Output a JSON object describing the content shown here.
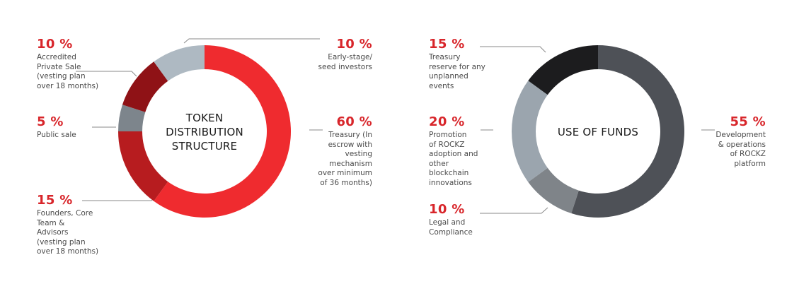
{
  "colors": {
    "label_accent": "#d8262b",
    "leader_line": "#8a8a8a"
  },
  "chart_data": [
    {
      "type": "pie",
      "title": "TOKEN\nDISTRIBUTION\nSTRUCTURE",
      "donut": true,
      "slices": [
        {
          "pct_label": "60 %",
          "value": 60,
          "desc": "Treasury (In\nescrow with\nvesting\nmechanism\nover minimum\nof 36 months)",
          "color": "#ef2b2f"
        },
        {
          "pct_label": "15 %",
          "value": 15,
          "desc": "Founders, Core\nTeam &\nAdvisors\n(vesting plan\nover 18 months)",
          "color": "#b71c1f"
        },
        {
          "pct_label": "5 %",
          "value": 5,
          "desc": "Public sale",
          "color": "#7d858c"
        },
        {
          "pct_label": "10 %",
          "value": 10,
          "desc": "Accredited\nPrivate Sale\n(vesting plan\nover 18 months)",
          "color": "#8f1216"
        },
        {
          "pct_label": "10 %",
          "value": 10,
          "desc": "Early-stage/\nseed investors",
          "color": "#aeb9c2"
        }
      ]
    },
    {
      "type": "pie",
      "title": "USE OF FUNDS",
      "donut": true,
      "slices": [
        {
          "pct_label": "55 %",
          "value": 55,
          "desc": "Development\n& operations\nof ROCKZ\nplatform",
          "color": "#4e5157"
        },
        {
          "pct_label": "10 %",
          "value": 10,
          "desc": "Legal and\nCompliance",
          "color": "#7f8489"
        },
        {
          "pct_label": "20 %",
          "value": 20,
          "desc": "Promotion\nof ROCKZ\nadoption and\nother\nblockchain\ninnovations",
          "color": "#9ba5ae"
        },
        {
          "pct_label": "15 %",
          "value": 15,
          "desc": "Treasury\nreserve for any\nunplanned\nevents",
          "color": "#1c1c1e"
        }
      ]
    }
  ]
}
